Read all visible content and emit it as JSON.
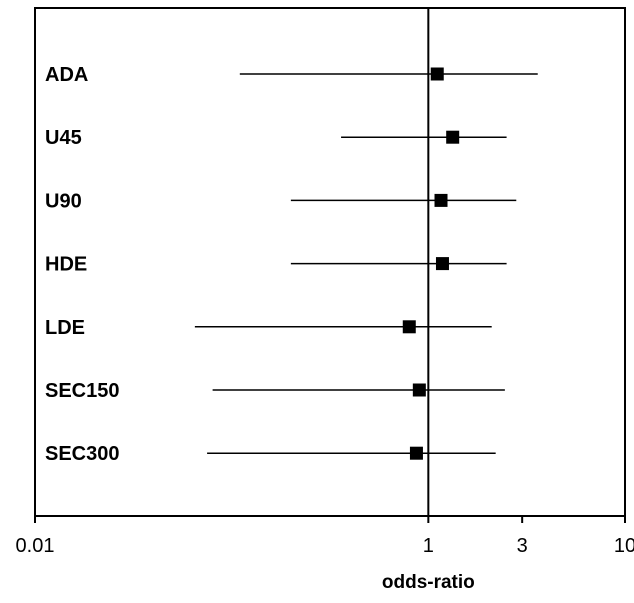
{
  "chart_data": {
    "type": "forest",
    "xscale": "log",
    "xlim": [
      0.01,
      10
    ],
    "ref_line": 1,
    "xticks": [
      0.01,
      1,
      3,
      10
    ],
    "xtick_labels": [
      "0.01",
      "1",
      "3",
      "10"
    ],
    "xlabel": "odds-ratio",
    "grid": false,
    "legend": "none",
    "rows": [
      {
        "label": "ADA",
        "estimate": 1.11,
        "lower": 0.11,
        "upper": 3.6
      },
      {
        "label": "U45",
        "estimate": 1.33,
        "lower": 0.36,
        "upper": 2.5
      },
      {
        "label": "U90",
        "estimate": 1.16,
        "lower": 0.2,
        "upper": 2.8
      },
      {
        "label": "HDE",
        "estimate": 1.18,
        "lower": 0.2,
        "upper": 2.5
      },
      {
        "label": "LDE",
        "estimate": 0.8,
        "lower": 0.065,
        "upper": 2.1
      },
      {
        "label": "SEC150",
        "estimate": 0.9,
        "lower": 0.08,
        "upper": 2.45
      },
      {
        "label": "SEC300",
        "estimate": 0.87,
        "lower": 0.075,
        "upper": 2.2
      }
    ],
    "colors": {
      "marker": "#000000",
      "line": "#000000",
      "frame": "#000000"
    }
  }
}
